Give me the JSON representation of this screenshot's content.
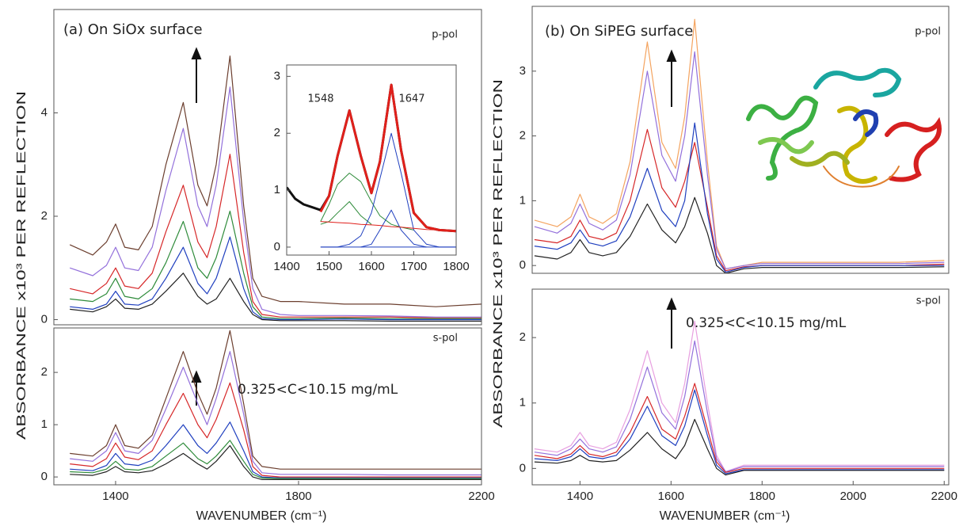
{
  "chart_data": [
    {
      "type": "line",
      "title": "(a) On SiOx surface",
      "annotations": [
        "p-pol"
      ],
      "x": [
        1300,
        1350,
        1380,
        1400,
        1420,
        1450,
        1480,
        1510,
        1548,
        1580,
        1600,
        1620,
        1650,
        1680,
        1700,
        1720,
        1760,
        1800,
        1900,
        2000,
        2100,
        2200
      ],
      "xlim": [
        1265,
        2200
      ],
      "ylim": [
        -0.1,
        6.0
      ],
      "yticks": [
        0,
        2,
        4
      ],
      "series": [
        {
          "color": "#6b3e2e",
          "values": [
            1.45,
            1.25,
            1.5,
            1.85,
            1.4,
            1.35,
            1.8,
            3.0,
            4.2,
            2.6,
            2.2,
            3.0,
            5.1,
            2.2,
            0.8,
            0.45,
            0.35,
            0.35,
            0.3,
            0.3,
            0.25,
            0.3
          ]
        },
        {
          "color": "#9370db",
          "values": [
            1.0,
            0.85,
            1.05,
            1.4,
            1.0,
            0.95,
            1.4,
            2.5,
            3.7,
            2.2,
            1.8,
            2.6,
            4.5,
            1.9,
            0.6,
            0.2,
            0.1,
            0.08,
            0.08,
            0.07,
            0.05,
            0.05
          ]
        },
        {
          "color": "#d62728",
          "values": [
            0.6,
            0.5,
            0.7,
            1.0,
            0.65,
            0.6,
            0.9,
            1.7,
            2.6,
            1.5,
            1.2,
            1.8,
            3.2,
            1.3,
            0.35,
            0.1,
            0.05,
            0.05,
            0.05,
            0.05,
            0.03,
            0.03
          ]
        },
        {
          "color": "#2e8b3a",
          "values": [
            0.4,
            0.35,
            0.5,
            0.8,
            0.45,
            0.4,
            0.6,
            1.1,
            1.9,
            1.0,
            0.8,
            1.2,
            2.1,
            0.9,
            0.25,
            0.05,
            0.02,
            0.02,
            0.03,
            0.02,
            0.02,
            0.02
          ]
        },
        {
          "color": "#1f3fbf",
          "values": [
            0.25,
            0.2,
            0.3,
            0.55,
            0.3,
            0.28,
            0.4,
            0.8,
            1.4,
            0.7,
            0.5,
            0.8,
            1.6,
            0.6,
            0.15,
            0.02,
            0.0,
            0.0,
            0.01,
            0.0,
            0.0,
            0.0
          ]
        },
        {
          "color": "#222222",
          "values": [
            0.2,
            0.15,
            0.25,
            0.4,
            0.22,
            0.2,
            0.3,
            0.55,
            0.9,
            0.45,
            0.3,
            0.4,
            0.8,
            0.35,
            0.1,
            0.0,
            -0.02,
            -0.02,
            -0.02,
            -0.03,
            -0.03,
            -0.03
          ]
        }
      ]
    },
    {
      "type": "line",
      "annotations": [
        "s-pol",
        "0.325<C<10.15 mg/mL"
      ],
      "xlabel": "WAVENUMBER (cm⁻¹)",
      "ylabel": "ABSORBANCE x10³  PER REFLECTION",
      "x": [
        1300,
        1350,
        1380,
        1400,
        1420,
        1450,
        1480,
        1510,
        1548,
        1580,
        1600,
        1620,
        1650,
        1680,
        1700,
        1720,
        1760,
        1800,
        1900,
        2000,
        2100,
        2200
      ],
      "xlim": [
        1265,
        2200
      ],
      "ylim": [
        -0.15,
        2.85
      ],
      "yticks": [
        0,
        1,
        2
      ],
      "xticks": [
        1400,
        1800,
        2200
      ],
      "series": [
        {
          "color": "#6b3e2e",
          "values": [
            0.45,
            0.4,
            0.6,
            1.0,
            0.6,
            0.55,
            0.8,
            1.5,
            2.4,
            1.6,
            1.2,
            1.7,
            2.8,
            1.4,
            0.4,
            0.2,
            0.15,
            0.15,
            0.15,
            0.15,
            0.15,
            0.15
          ]
        },
        {
          "color": "#9370db",
          "values": [
            0.35,
            0.3,
            0.5,
            0.85,
            0.5,
            0.45,
            0.7,
            1.3,
            2.1,
            1.4,
            1.0,
            1.5,
            2.4,
            1.2,
            0.3,
            0.08,
            0.05,
            0.05,
            0.05,
            0.04,
            0.04,
            0.04
          ]
        },
        {
          "color": "#d62728",
          "values": [
            0.25,
            0.2,
            0.35,
            0.65,
            0.38,
            0.33,
            0.5,
            1.0,
            1.6,
            1.0,
            0.75,
            1.1,
            1.8,
            0.9,
            0.2,
            0.03,
            0.0,
            0.0,
            0.0,
            0.0,
            0.0,
            0.0
          ]
        },
        {
          "color": "#1f3fbf",
          "values": [
            0.15,
            0.12,
            0.22,
            0.45,
            0.25,
            0.22,
            0.32,
            0.6,
            1.0,
            0.6,
            0.45,
            0.65,
            1.05,
            0.5,
            0.1,
            0.0,
            -0.02,
            -0.02,
            -0.02,
            -0.02,
            -0.02,
            -0.02
          ]
        },
        {
          "color": "#2e8b3a",
          "values": [
            0.1,
            0.08,
            0.15,
            0.3,
            0.15,
            0.13,
            0.2,
            0.4,
            0.65,
            0.35,
            0.25,
            0.4,
            0.7,
            0.3,
            0.05,
            -0.02,
            -0.03,
            -0.03,
            -0.03,
            -0.03,
            -0.03,
            -0.03
          ]
        },
        {
          "color": "#222222",
          "values": [
            0.05,
            0.03,
            0.1,
            0.2,
            0.1,
            0.08,
            0.12,
            0.25,
            0.45,
            0.25,
            0.15,
            0.3,
            0.6,
            0.2,
            0.0,
            -0.05,
            -0.05,
            -0.05,
            -0.05,
            -0.05,
            -0.05,
            -0.05
          ]
        }
      ]
    },
    {
      "type": "line",
      "annotations": [
        "1548",
        "1647"
      ],
      "x": [
        1400,
        1420,
        1440,
        1460,
        1480,
        1500,
        1520,
        1548,
        1575,
        1600,
        1620,
        1647,
        1670,
        1700,
        1730,
        1760,
        1800
      ],
      "xlim": [
        1400,
        1800
      ],
      "ylim": [
        -0.14,
        3.2
      ],
      "yticks": [
        0,
        1,
        2,
        3
      ],
      "xticks": [
        1400,
        1500,
        1600,
        1700,
        1800
      ],
      "series": [
        {
          "color": "#111111",
          "width": 3,
          "values": [
            1.05,
            0.85,
            0.75,
            0.7,
            0.65,
            0.9,
            1.6,
            2.4,
            1.6,
            0.95,
            1.5,
            2.85,
            1.7,
            0.6,
            0.35,
            0.3,
            0.28
          ]
        },
        {
          "color": "#e0201b",
          "width": 3,
          "values": [
            null,
            null,
            null,
            null,
            0.62,
            0.9,
            1.6,
            2.4,
            1.6,
            0.95,
            1.5,
            2.85,
            1.7,
            0.6,
            0.35,
            0.3,
            0.28
          ]
        },
        {
          "color": "#2e8b3a",
          "width": 1,
          "values": [
            null,
            null,
            null,
            null,
            0.45,
            0.75,
            1.1,
            1.3,
            1.15,
            0.8,
            0.55,
            0.4,
            0.35,
            0.3,
            null,
            null,
            null
          ]
        },
        {
          "color": "#2e8b3a",
          "width": 1,
          "values": [
            null,
            null,
            null,
            null,
            0.4,
            0.45,
            0.6,
            0.8,
            0.55,
            0.4,
            null,
            null,
            null,
            null,
            null,
            null,
            null
          ]
        },
        {
          "color": "#1f3fbf",
          "width": 1,
          "values": [
            null,
            null,
            null,
            null,
            0,
            0,
            0,
            0.05,
            0.2,
            0.6,
            1.2,
            2.0,
            1.3,
            0.3,
            0.05,
            0,
            0
          ]
        },
        {
          "color": "#1f3fbf",
          "width": 1,
          "values": [
            null,
            null,
            null,
            null,
            null,
            null,
            null,
            null,
            0,
            0.05,
            0.3,
            0.65,
            0.3,
            0.05,
            0,
            null,
            null
          ]
        },
        {
          "color": "#1f3fbf",
          "width": 1,
          "values": [
            null,
            null,
            null,
            null,
            0,
            0,
            0,
            0,
            0,
            0,
            0,
            0,
            0,
            0,
            0,
            0,
            0
          ]
        },
        {
          "color": "#e0201b",
          "width": 1,
          "values": [
            null,
            null,
            null,
            null,
            0.45,
            0.44,
            0.43,
            0.42,
            0.4,
            0.39,
            0.38,
            0.36,
            0.35,
            0.33,
            0.31,
            0.3,
            0.28
          ]
        }
      ]
    },
    {
      "type": "line",
      "title": "(b) On SiPEG surface",
      "annotations": [
        "p-pol"
      ],
      "x": [
        1300,
        1350,
        1380,
        1400,
        1420,
        1450,
        1480,
        1510,
        1548,
        1580,
        1610,
        1630,
        1652,
        1680,
        1700,
        1720,
        1760,
        1800,
        1900,
        2000,
        2100,
        2200
      ],
      "xlim": [
        1295,
        2210
      ],
      "ylim": [
        -0.12,
        4.0
      ],
      "yticks": [
        0,
        1,
        2,
        3
      ],
      "series": [
        {
          "color": "#f4a460",
          "values": [
            0.7,
            0.6,
            0.75,
            1.1,
            0.75,
            0.65,
            0.8,
            1.6,
            3.45,
            1.9,
            1.5,
            2.3,
            3.8,
            1.6,
            0.3,
            -0.05,
            0.0,
            0.05,
            0.05,
            0.05,
            0.05,
            0.08
          ]
        },
        {
          "color": "#9370db",
          "values": [
            0.6,
            0.5,
            0.65,
            0.95,
            0.65,
            0.55,
            0.7,
            1.4,
            3.0,
            1.7,
            1.3,
            2.0,
            3.3,
            1.4,
            0.25,
            -0.05,
            0.0,
            0.03,
            0.03,
            0.03,
            0.03,
            0.05
          ]
        },
        {
          "color": "#d62728",
          "values": [
            0.4,
            0.35,
            0.45,
            0.7,
            0.45,
            0.4,
            0.5,
            1.0,
            2.1,
            1.2,
            0.9,
            1.3,
            1.9,
            0.9,
            0.15,
            -0.08,
            -0.02,
            0.0,
            0.0,
            0.0,
            0.0,
            0.02
          ]
        },
        {
          "color": "#1f3fbf",
          "values": [
            0.3,
            0.25,
            0.35,
            0.55,
            0.35,
            0.3,
            0.38,
            0.75,
            1.5,
            0.85,
            0.6,
            1.0,
            2.2,
            0.8,
            0.1,
            -0.1,
            -0.03,
            0.0,
            0.0,
            0.0,
            0.0,
            0.0
          ]
        },
        {
          "color": "#222222",
          "values": [
            0.15,
            0.1,
            0.2,
            0.4,
            0.2,
            0.15,
            0.2,
            0.45,
            0.95,
            0.55,
            0.35,
            0.6,
            1.05,
            0.5,
            0.0,
            -0.12,
            -0.05,
            -0.03,
            -0.03,
            -0.03,
            -0.03,
            -0.02
          ]
        }
      ]
    },
    {
      "type": "line",
      "annotations": [
        "s-pol",
        "0.325<C<10.15 mg/mL"
      ],
      "xlabel": "WAVENUMBER (cm⁻¹)",
      "ylabel": "ABSORBANCE x10³  PER REFLECTION",
      "x": [
        1300,
        1350,
        1380,
        1400,
        1420,
        1450,
        1480,
        1510,
        1548,
        1580,
        1610,
        1630,
        1652,
        1680,
        1700,
        1720,
        1760,
        1800,
        1900,
        2000,
        2100,
        2200
      ],
      "xlim": [
        1295,
        2210
      ],
      "ylim": [
        -0.25,
        2.74
      ],
      "yticks": [
        0,
        1,
        2
      ],
      "xticks": [
        1400,
        1600,
        1800,
        2000,
        2200
      ],
      "series": [
        {
          "color": "#e8a0e0",
          "values": [
            0.3,
            0.25,
            0.35,
            0.55,
            0.35,
            0.3,
            0.4,
            0.9,
            1.8,
            1.0,
            0.7,
            1.3,
            2.25,
            1.0,
            0.2,
            -0.05,
            0.05,
            0.05,
            0.05,
            0.05,
            0.05,
            0.05
          ]
        },
        {
          "color": "#9370db",
          "values": [
            0.25,
            0.2,
            0.3,
            0.45,
            0.3,
            0.25,
            0.33,
            0.75,
            1.55,
            0.85,
            0.6,
            1.1,
            1.95,
            0.85,
            0.15,
            -0.05,
            0.03,
            0.03,
            0.03,
            0.03,
            0.03,
            0.03
          ]
        },
        {
          "color": "#d62728",
          "values": [
            0.2,
            0.15,
            0.22,
            0.35,
            0.22,
            0.18,
            0.25,
            0.55,
            1.1,
            0.6,
            0.45,
            0.8,
            1.3,
            0.6,
            0.1,
            -0.06,
            0.0,
            0.0,
            0.0,
            0.0,
            0.0,
            0.0
          ]
        },
        {
          "color": "#1f3fbf",
          "values": [
            0.15,
            0.12,
            0.18,
            0.3,
            0.18,
            0.15,
            0.2,
            0.45,
            0.95,
            0.5,
            0.35,
            0.65,
            1.2,
            0.5,
            0.05,
            -0.08,
            -0.02,
            -0.02,
            -0.02,
            -0.02,
            -0.02,
            -0.02
          ]
        },
        {
          "color": "#222222",
          "values": [
            0.1,
            0.08,
            0.12,
            0.2,
            0.12,
            0.1,
            0.12,
            0.28,
            0.55,
            0.3,
            0.15,
            0.35,
            0.75,
            0.3,
            0.0,
            -0.1,
            -0.03,
            -0.03,
            -0.03,
            -0.03,
            -0.03,
            -0.03
          ]
        }
      ]
    }
  ]
}
